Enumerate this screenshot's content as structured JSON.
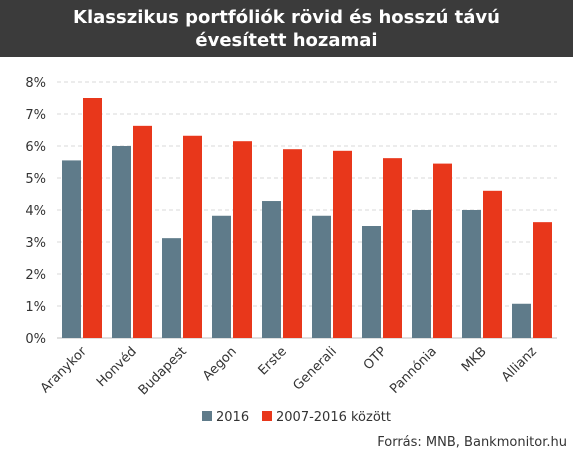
{
  "chart_data": {
    "type": "bar",
    "title": "Klasszikus portfóliók rövid és hosszú távú évesített hozamai",
    "categories": [
      "Aranykor",
      "Honvéd",
      "Budapest",
      "Aegon",
      "Erste",
      "Generali",
      "OTP",
      "Pannónia",
      "MKB",
      "Allianz"
    ],
    "series": [
      {
        "name": "2016",
        "color": "#5f7b8a",
        "values": [
          5.55,
          6.0,
          3.12,
          3.82,
          4.28,
          3.82,
          3.5,
          4.0,
          4.0,
          1.07
        ]
      },
      {
        "name": "2007-2016 között",
        "color": "#e8371b",
        "values": [
          7.5,
          6.63,
          6.32,
          6.15,
          5.9,
          5.85,
          5.62,
          5.45,
          4.6,
          3.62
        ]
      }
    ],
    "y_ticks": [
      "0%",
      "1%",
      "2%",
      "3%",
      "4%",
      "5%",
      "6%",
      "7%",
      "8%"
    ],
    "ylim": [
      0,
      8
    ],
    "grid": true,
    "legend_position": "bottom",
    "source": "Forrás: MNB, Bankmonitor.hu"
  }
}
